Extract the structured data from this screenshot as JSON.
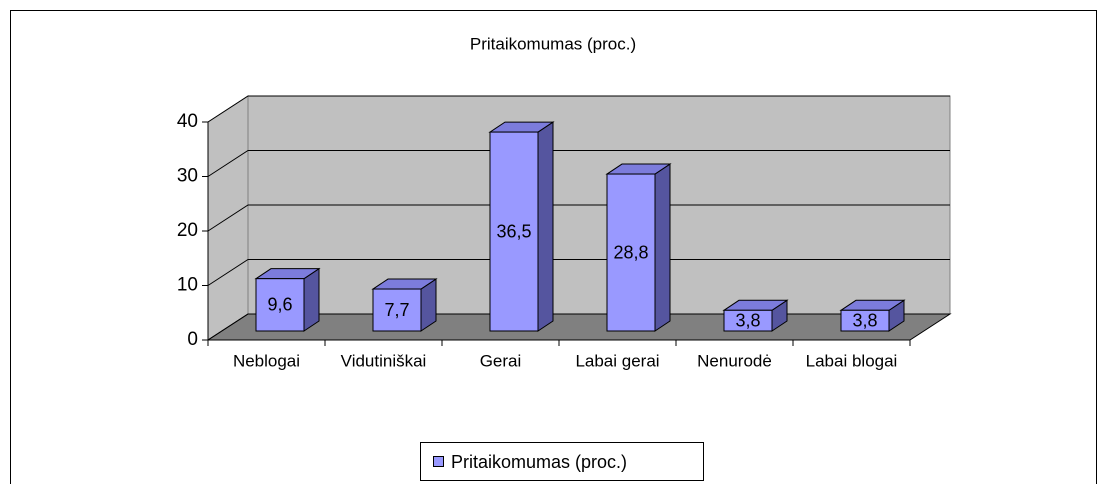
{
  "chart_data": {
    "type": "bar3d",
    "title": "Pritaikomumas (proc.)",
    "categories": [
      "Neblogai",
      "Vidutiniškai",
      "Gerai",
      "Labai gerai",
      "Nenurodė",
      "Labai blogai"
    ],
    "series": [
      {
        "name": "Pritaikomumas (proc.)",
        "color": "#9999ff",
        "values": [
          9.6,
          7.7,
          36.5,
          28.8,
          3.8,
          3.8
        ],
        "value_labels": [
          "9,6",
          "7,7",
          "36,5",
          "28,8",
          "3,8",
          "3,8"
        ]
      }
    ],
    "ylim": [
      0,
      40
    ],
    "yticks": [
      0,
      10,
      20,
      30,
      40
    ],
    "grid": true,
    "legend": "bottom"
  }
}
